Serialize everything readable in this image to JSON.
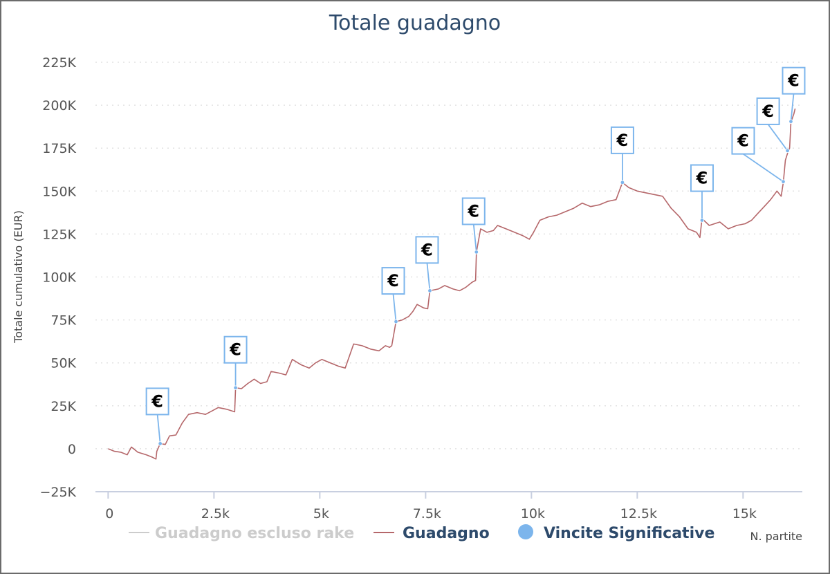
{
  "chart_data": {
    "type": "line",
    "title": "Totale guadagno",
    "xlabel": "N. partite",
    "ylabel": "Totale cumulativo (EUR)",
    "xlim": [
      -300,
      16400
    ],
    "ylim": [
      -25000,
      225000
    ],
    "x_ticks": [
      0,
      2500,
      5000,
      7500,
      10000,
      12500,
      15000
    ],
    "x_tick_labels": [
      "0",
      "2.5k",
      "5k",
      "7.5k",
      "10k",
      "12.5k",
      "15k"
    ],
    "y_ticks": [
      -25000,
      0,
      25000,
      50000,
      75000,
      100000,
      125000,
      150000,
      175000,
      200000,
      225000
    ],
    "y_tick_labels": [
      "−25K",
      "0",
      "25K",
      "50K",
      "75K",
      "100K",
      "125K",
      "150K",
      "175K",
      "200K",
      "225K"
    ],
    "grid": true,
    "legend_position": "bottom-center",
    "series": [
      {
        "name": "Guadagno escluso rake",
        "color": "#cccccc",
        "visible": false,
        "points": []
      },
      {
        "name": "Guadagno",
        "color": "#b5676a",
        "visible": true,
        "points": [
          [
            0,
            0
          ],
          [
            150,
            -1500
          ],
          [
            300,
            -2000
          ],
          [
            450,
            -3500
          ],
          [
            550,
            1000
          ],
          [
            700,
            -2000
          ],
          [
            900,
            -3500
          ],
          [
            1050,
            -5000
          ],
          [
            1130,
            -6000
          ],
          [
            1150,
            -1500
          ],
          [
            1230,
            3000
          ],
          [
            1350,
            2500
          ],
          [
            1450,
            7500
          ],
          [
            1600,
            8000
          ],
          [
            1750,
            15000
          ],
          [
            1900,
            20000
          ],
          [
            2100,
            21000
          ],
          [
            2300,
            20000
          ],
          [
            2450,
            22000
          ],
          [
            2600,
            24000
          ],
          [
            2800,
            23000
          ],
          [
            2990,
            21500
          ],
          [
            3010,
            35500
          ],
          [
            3150,
            35000
          ],
          [
            3300,
            38000
          ],
          [
            3450,
            40500
          ],
          [
            3600,
            38000
          ],
          [
            3750,
            39000
          ],
          [
            3850,
            45000
          ],
          [
            4050,
            44000
          ],
          [
            4200,
            43000
          ],
          [
            4350,
            52000
          ],
          [
            4550,
            49000
          ],
          [
            4750,
            47000
          ],
          [
            4900,
            50000
          ],
          [
            5050,
            52000
          ],
          [
            5250,
            50000
          ],
          [
            5450,
            48000
          ],
          [
            5600,
            47000
          ],
          [
            5800,
            61000
          ],
          [
            6000,
            60000
          ],
          [
            6200,
            58000
          ],
          [
            6400,
            57000
          ],
          [
            6550,
            60000
          ],
          [
            6650,
            59000
          ],
          [
            6700,
            60000
          ],
          [
            6800,
            74000
          ],
          [
            6950,
            75000
          ],
          [
            7100,
            77000
          ],
          [
            7200,
            80000
          ],
          [
            7300,
            84000
          ],
          [
            7450,
            82000
          ],
          [
            7550,
            81500
          ],
          [
            7600,
            92000
          ],
          [
            7800,
            93000
          ],
          [
            7950,
            95000
          ],
          [
            8150,
            93000
          ],
          [
            8300,
            92000
          ],
          [
            8450,
            94000
          ],
          [
            8600,
            97000
          ],
          [
            8680,
            98000
          ],
          [
            8700,
            114500
          ],
          [
            8800,
            128000
          ],
          [
            8950,
            126000
          ],
          [
            9100,
            127000
          ],
          [
            9200,
            130000
          ],
          [
            9400,
            128000
          ],
          [
            9600,
            126000
          ],
          [
            9800,
            124000
          ],
          [
            9950,
            122000
          ],
          [
            10050,
            126000
          ],
          [
            10200,
            133000
          ],
          [
            10400,
            135000
          ],
          [
            10600,
            136000
          ],
          [
            10800,
            138000
          ],
          [
            11000,
            140000
          ],
          [
            11200,
            143000
          ],
          [
            11400,
            141000
          ],
          [
            11600,
            142000
          ],
          [
            11800,
            144000
          ],
          [
            12000,
            145000
          ],
          [
            12150,
            155000
          ],
          [
            12300,
            152000
          ],
          [
            12500,
            150000
          ],
          [
            12700,
            149000
          ],
          [
            12900,
            148000
          ],
          [
            13100,
            147000
          ],
          [
            13300,
            140000
          ],
          [
            13500,
            135000
          ],
          [
            13700,
            128000
          ],
          [
            13900,
            126000
          ],
          [
            13980,
            123000
          ],
          [
            14030,
            134000
          ],
          [
            14200,
            130000
          ],
          [
            14450,
            132000
          ],
          [
            14650,
            128000
          ],
          [
            14850,
            130000
          ],
          [
            15050,
            131000
          ],
          [
            15200,
            133000
          ],
          [
            15350,
            137000
          ],
          [
            15500,
            141000
          ],
          [
            15650,
            145000
          ],
          [
            15800,
            150000
          ],
          [
            15900,
            147000
          ],
          [
            15950,
            155000
          ],
          [
            16000,
            168000
          ],
          [
            16050,
            172000
          ],
          [
            16100,
            175000
          ],
          [
            16130,
            190000
          ],
          [
            16200,
            195000
          ],
          [
            16230,
            198000
          ]
        ]
      },
      {
        "name": "Vincite Significative",
        "color": "#7cb5ec",
        "visible": true,
        "flag_symbol": "€",
        "points": [
          [
            1230,
            3000
          ],
          [
            3010,
            35500
          ],
          [
            6800,
            74000
          ],
          [
            7600,
            92000
          ],
          [
            8700,
            114500
          ],
          [
            12150,
            155000
          ],
          [
            14030,
            133000
          ],
          [
            15950,
            155500
          ],
          [
            16050,
            173500
          ],
          [
            16130,
            190500
          ]
        ]
      }
    ]
  }
}
